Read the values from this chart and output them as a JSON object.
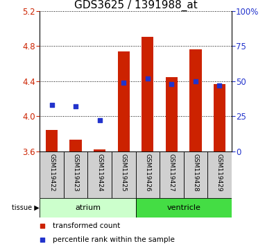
{
  "title": "GDS3625 / 1391988_at",
  "samples": [
    "GSM119422",
    "GSM119423",
    "GSM119424",
    "GSM119425",
    "GSM119426",
    "GSM119427",
    "GSM119428",
    "GSM119429"
  ],
  "bar_values": [
    3.84,
    3.73,
    3.62,
    4.74,
    4.91,
    4.45,
    4.76,
    4.37
  ],
  "bar_bottom": 3.6,
  "percentile_right": [
    33,
    32,
    22,
    49,
    52,
    48,
    50,
    47
  ],
  "ylim_left": [
    3.6,
    5.2
  ],
  "ylim_right": [
    0,
    100
  ],
  "yticks_left": [
    3.6,
    4.0,
    4.4,
    4.8,
    5.2
  ],
  "yticks_right": [
    0,
    25,
    50,
    75,
    100
  ],
  "ytick_labels_right": [
    "0",
    "25",
    "50",
    "75",
    "100%"
  ],
  "bar_color": "#cc2200",
  "dot_color": "#2233cc",
  "tissue_groups": [
    {
      "label": "atrium",
      "start": 0,
      "end": 4,
      "color": "#ccffcc"
    },
    {
      "label": "ventricle",
      "start": 4,
      "end": 8,
      "color": "#44dd44"
    }
  ],
  "tissue_label": "tissue",
  "legend_items": [
    {
      "label": "transformed count",
      "color": "#cc2200"
    },
    {
      "label": "percentile rank within the sample",
      "color": "#2233cc"
    }
  ],
  "xlabel_color": "#cc2200",
  "ylabel_right_color": "#2233cc",
  "title_fontsize": 11,
  "tick_fontsize": 8.5,
  "label_fontsize": 6.5,
  "tissue_fontsize": 8,
  "legend_fontsize": 7.5
}
